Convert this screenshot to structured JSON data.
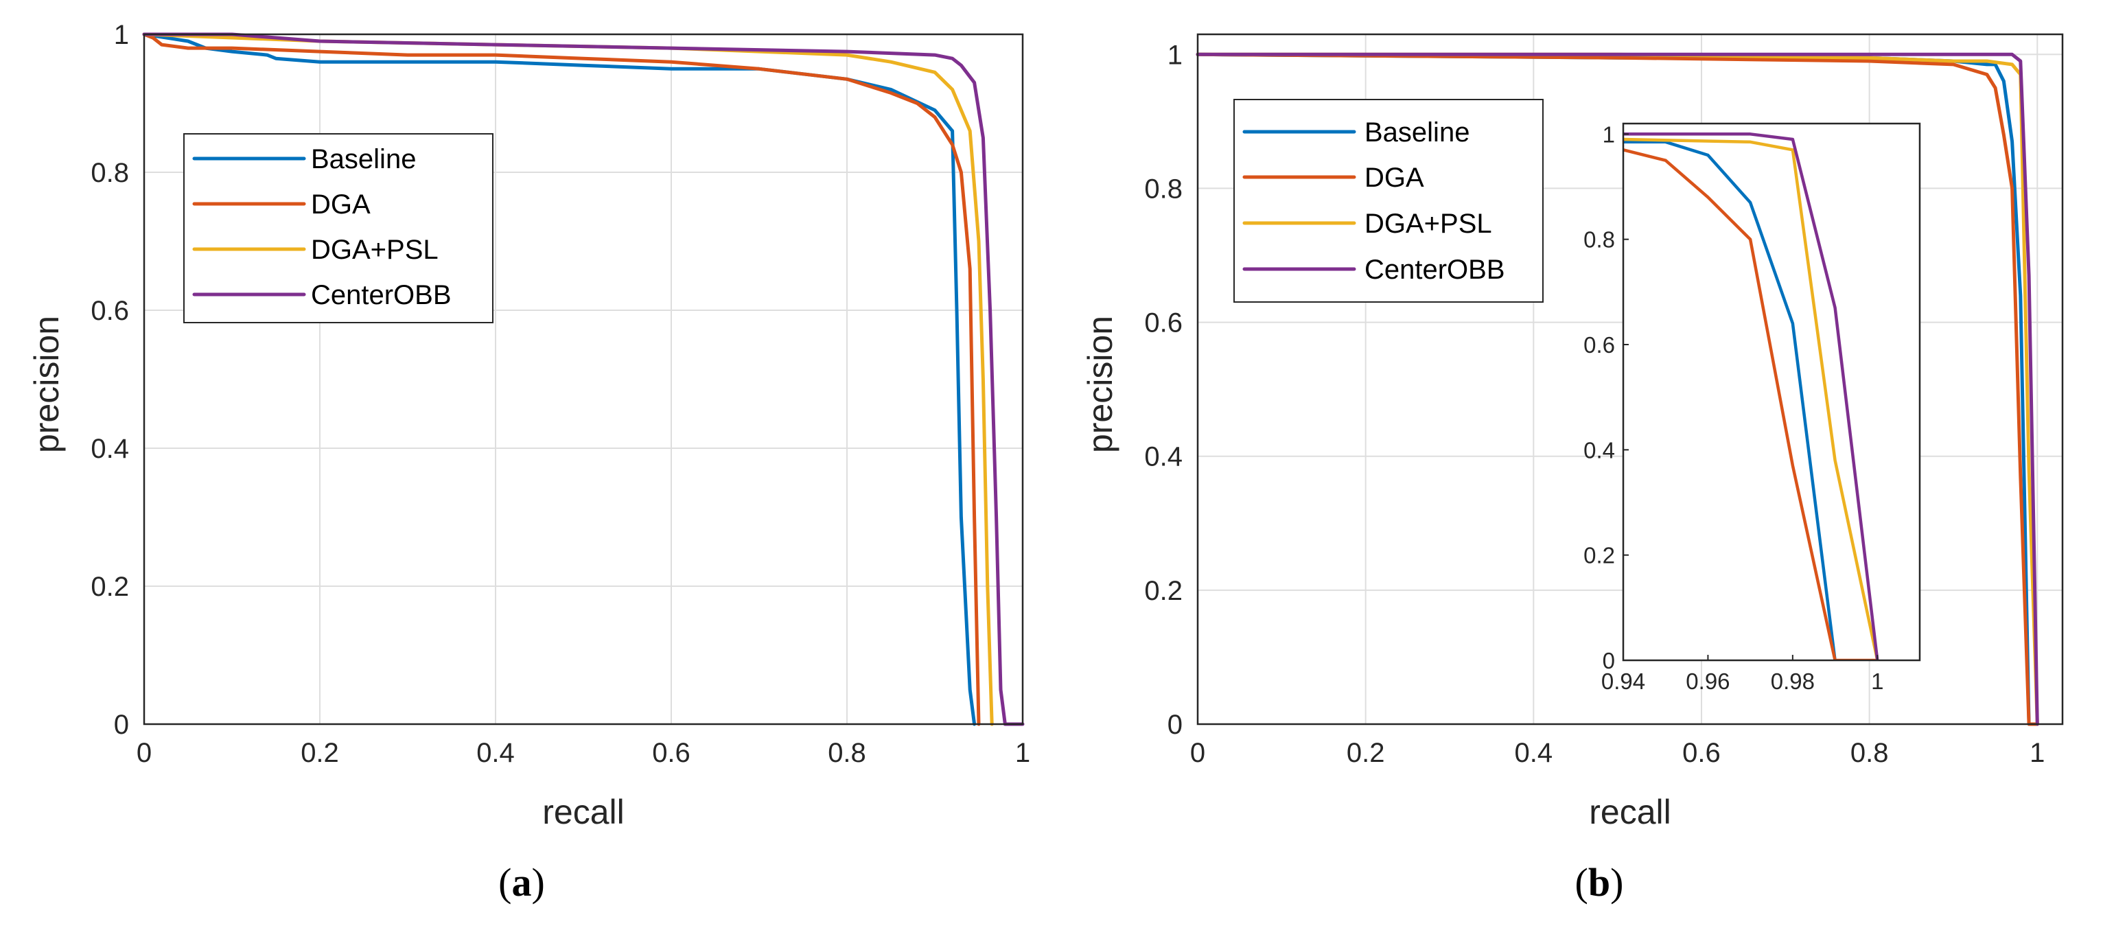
{
  "colors": {
    "Baseline": "#0072BD",
    "DGA": "#D95319",
    "DGA+PSL": "#EDB120",
    "CenterOBB": "#7E2F8E"
  },
  "chart_data": [
    {
      "id": "a",
      "type": "line",
      "caption": {
        "open": "(",
        "letter": "a",
        "close": ")"
      },
      "xlabel": "recall",
      "ylabel": "precision",
      "xlim": [
        0,
        1
      ],
      "ylim": [
        0,
        1
      ],
      "grid": true,
      "legend_position": "upper-left",
      "xticks": [
        0,
        0.2,
        0.4,
        0.6,
        0.8,
        1
      ],
      "xtick_labels": [
        "0",
        "0.2",
        "0.4",
        "0.6",
        "0.8",
        "1"
      ],
      "yticks": [
        0,
        0.2,
        0.4,
        0.6,
        0.8,
        1
      ],
      "ytick_labels": [
        "0",
        "0.2",
        "0.4",
        "0.6",
        "0.8",
        "1"
      ],
      "series": [
        {
          "name": "Baseline",
          "x": [
            0,
            0.05,
            0.07,
            0.1,
            0.14,
            0.15,
            0.2,
            0.4,
            0.5,
            0.6,
            0.7,
            0.8,
            0.85,
            0.9,
            0.92,
            0.925,
            0.93,
            0.94,
            0.945
          ],
          "y": [
            1,
            0.99,
            0.98,
            0.975,
            0.97,
            0.965,
            0.96,
            0.96,
            0.955,
            0.95,
            0.95,
            0.935,
            0.92,
            0.89,
            0.86,
            0.6,
            0.3,
            0.05,
            0
          ]
        },
        {
          "name": "DGA",
          "x": [
            0,
            0.01,
            0.02,
            0.05,
            0.1,
            0.2,
            0.3,
            0.4,
            0.5,
            0.6,
            0.7,
            0.8,
            0.85,
            0.88,
            0.9,
            0.91,
            0.92,
            0.93,
            0.94,
            0.945,
            0.95
          ],
          "y": [
            1,
            0.995,
            0.985,
            0.98,
            0.98,
            0.975,
            0.97,
            0.97,
            0.965,
            0.96,
            0.95,
            0.935,
            0.915,
            0.9,
            0.88,
            0.86,
            0.84,
            0.8,
            0.66,
            0.3,
            0
          ]
        },
        {
          "name": "DGA+PSL",
          "x": [
            0,
            0.1,
            0.2,
            0.4,
            0.6,
            0.7,
            0.8,
            0.85,
            0.9,
            0.92,
            0.94,
            0.95,
            0.955,
            0.96,
            0.965
          ],
          "y": [
            1,
            0.995,
            0.99,
            0.985,
            0.98,
            0.975,
            0.97,
            0.96,
            0.945,
            0.92,
            0.86,
            0.7,
            0.5,
            0.2,
            0
          ]
        },
        {
          "name": "CenterOBB",
          "x": [
            0,
            0.1,
            0.15,
            0.2,
            0.4,
            0.6,
            0.8,
            0.9,
            0.92,
            0.93,
            0.945,
            0.955,
            0.963,
            0.97,
            0.975,
            0.98,
            1
          ],
          "y": [
            1,
            1,
            0.995,
            0.99,
            0.985,
            0.98,
            0.975,
            0.97,
            0.965,
            0.955,
            0.93,
            0.85,
            0.6,
            0.3,
            0.05,
            0,
            0
          ]
        }
      ]
    },
    {
      "id": "b",
      "type": "line",
      "caption": {
        "open": "(",
        "letter": "b",
        "close": ")"
      },
      "xlabel": "recall",
      "ylabel": "precision",
      "xlim": [
        0,
        1.03
      ],
      "ylim": [
        0,
        1.03
      ],
      "grid": true,
      "legend_position": "upper-left",
      "xticks": [
        0,
        0.2,
        0.4,
        0.6,
        0.8,
        1
      ],
      "xtick_labels": [
        "0",
        "0.2",
        "0.4",
        "0.6",
        "0.8",
        "1"
      ],
      "yticks": [
        0,
        0.2,
        0.4,
        0.6,
        0.8,
        1
      ],
      "ytick_labels": [
        "0",
        "0.2",
        "0.4",
        "0.6",
        "0.8",
        "1"
      ],
      "series": [
        {
          "name": "Baseline",
          "x": [
            0,
            0.5,
            0.8,
            0.9,
            0.94,
            0.95,
            0.96,
            0.97,
            0.98,
            0.99
          ],
          "y": [
            1,
            0.995,
            0.995,
            0.99,
            0.985,
            0.985,
            0.96,
            0.87,
            0.64,
            0
          ]
        },
        {
          "name": "DGA",
          "x": [
            0,
            0.5,
            0.8,
            0.9,
            0.94,
            0.95,
            0.96,
            0.97,
            0.98,
            0.99,
            1
          ],
          "y": [
            1,
            0.995,
            0.99,
            0.985,
            0.97,
            0.95,
            0.88,
            0.8,
            0.37,
            0,
            0
          ]
        },
        {
          "name": "DGA+PSL",
          "x": [
            0,
            0.5,
            0.8,
            0.9,
            0.94,
            0.97,
            0.98,
            0.99,
            1
          ],
          "y": [
            1,
            1,
            0.995,
            0.99,
            0.99,
            0.985,
            0.97,
            0.38,
            0
          ]
        },
        {
          "name": "CenterOBB",
          "x": [
            0,
            0.5,
            0.9,
            0.94,
            0.97,
            0.98,
            0.99,
            1
          ],
          "y": [
            1,
            1,
            1,
            1,
            1,
            0.99,
            0.67,
            0
          ]
        }
      ],
      "inset": {
        "xlim": [
          0.94,
          1.01
        ],
        "ylim": [
          0,
          1.02
        ],
        "xticks": [
          0.94,
          0.96,
          0.98,
          1
        ],
        "xtick_labels": [
          "0.94",
          "0.96",
          "0.98",
          "1"
        ],
        "yticks": [
          0,
          0.2,
          0.4,
          0.6,
          0.8,
          1
        ],
        "ytick_labels": [
          "0",
          "0.2",
          "0.4",
          "0.6",
          "0.8",
          "1"
        ],
        "grid": false
      }
    }
  ]
}
